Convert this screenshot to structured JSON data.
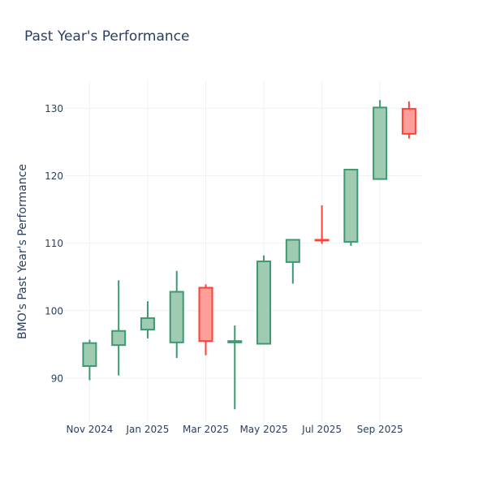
{
  "chart_data": {
    "type": "candlestick",
    "title": "Past Year's Performance",
    "xlabel": "",
    "ylabel": "BMO's Past Year's Performance",
    "ylim": [
      83.5,
      134
    ],
    "yticks": [
      90,
      100,
      110,
      120,
      130
    ],
    "xticks": [
      {
        "label": "Nov 2024",
        "month": 0
      },
      {
        "label": "Jan 2025",
        "month": 2
      },
      {
        "label": "Mar 2025",
        "month": 4
      },
      {
        "label": "May 2025",
        "month": 6
      },
      {
        "label": "Jul 2025",
        "month": 8
      },
      {
        "label": "Sep 2025",
        "month": 10
      }
    ],
    "xlim_months": [
      -0.85,
      11.45
    ],
    "grid": true,
    "colors": {
      "increasing_line": "#3d9970",
      "increasing_fill": "#9ecbb2",
      "decreasing_line": "#ff4136",
      "decreasing_fill": "#ff9f9a",
      "grid": "#eef0f4",
      "text": "#2a3f5f"
    },
    "candles": [
      {
        "month": 0,
        "open": 91.8,
        "high": 95.7,
        "low": 89.7,
        "close": 95.2
      },
      {
        "month": 1,
        "open": 94.9,
        "high": 104.5,
        "low": 90.4,
        "close": 97.0
      },
      {
        "month": 2,
        "open": 97.2,
        "high": 101.4,
        "low": 95.9,
        "close": 98.9
      },
      {
        "month": 3,
        "open": 95.3,
        "high": 105.9,
        "low": 93.0,
        "close": 102.8
      },
      {
        "month": 4,
        "open": 103.4,
        "high": 103.9,
        "low": 93.4,
        "close": 95.5
      },
      {
        "month": 5,
        "open": 95.3,
        "high": 97.8,
        "low": 85.4,
        "close": 95.5
      },
      {
        "month": 6,
        "open": 95.1,
        "high": 108.2,
        "low": 95.1,
        "close": 107.3
      },
      {
        "month": 7,
        "open": 107.2,
        "high": 110.6,
        "low": 104.0,
        "close": 110.5
      },
      {
        "month": 8,
        "open": 110.5,
        "high": 115.6,
        "low": 109.9,
        "close": 110.4
      },
      {
        "month": 9,
        "open": 110.2,
        "high": 121.0,
        "low": 109.6,
        "close": 120.9
      },
      {
        "month": 10,
        "open": 119.5,
        "high": 131.2,
        "low": 119.5,
        "close": 130.1
      },
      {
        "month": 11,
        "open": 129.9,
        "high": 131.0,
        "low": 125.5,
        "close": 126.2
      }
    ]
  }
}
